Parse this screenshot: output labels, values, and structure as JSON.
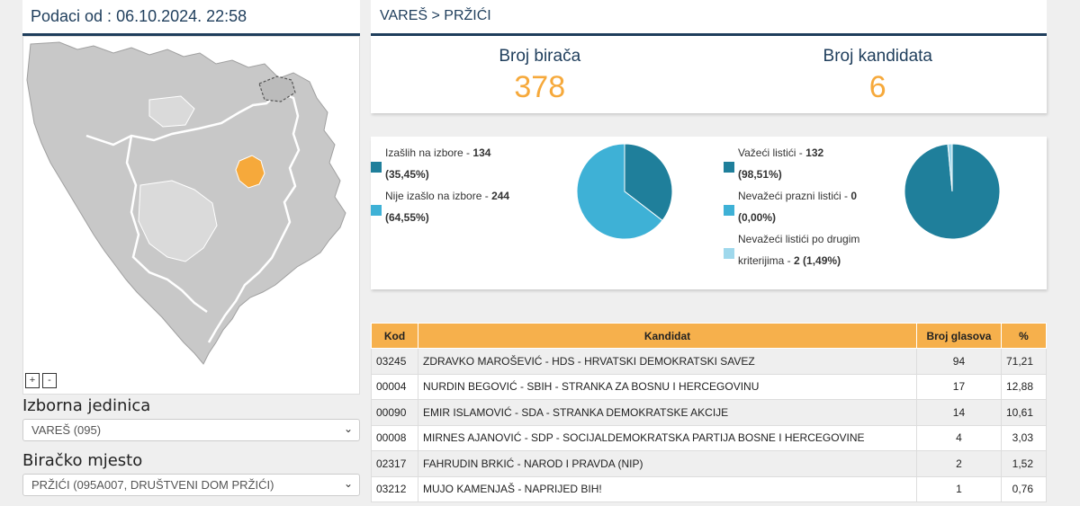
{
  "data_timestamp": "Podaci od : 06.10.2024. 22:58",
  "breadcrumb": "VAREŠ > PRŽIĆI",
  "zoom": {
    "in": "+",
    "out": "-"
  },
  "election_unit": {
    "label": "Izborna jedinica",
    "value": "VAREŠ (095)"
  },
  "polling_station": {
    "label": "Biračko mjesto",
    "value": "PRŽIĆI (095A007, DRUŠTVENI DOM PRŽIĆI)"
  },
  "stats": {
    "voters_label": "Broj birača",
    "voters_value": "378",
    "candidates_label": "Broj kandidata",
    "candidates_value": "6"
  },
  "turnout": {
    "items": [
      {
        "label": "Izašlih na izbore",
        "count": "134",
        "percent": "(35,45%)",
        "color": "#1f7f9b",
        "share": 35.45
      },
      {
        "label": "Nije izašlo na izbore",
        "count": "244",
        "percent": "(64,55%)",
        "color": "#3eb1d6",
        "share": 64.55
      }
    ]
  },
  "ballots": {
    "items": [
      {
        "label": "Važeći listići",
        "count": "132",
        "percent": "(98,51%)",
        "color": "#1f7f9b",
        "share": 98.51
      },
      {
        "label": "Nevažeći prazni listići",
        "count": "0",
        "percent": "(0,00%)",
        "color": "#3eb1d6",
        "share": 0
      },
      {
        "label_line1": "Nevažeći listići po drugim",
        "label_line2": "kriterijima",
        "count": "2",
        "percent": "(1,49%)",
        "color": "#9fd8ec",
        "share": 1.49
      }
    ]
  },
  "table": {
    "headers": {
      "code": "Kod",
      "candidate": "Kandidat",
      "votes": "Broj glasova",
      "pct": "%"
    },
    "rows": [
      {
        "code": "03245",
        "candidate": "ZDRAVKO MAROŠEVIĆ - HDS - HRVATSKI DEMOKRATSKI SAVEZ",
        "votes": "94",
        "pct": "71,21"
      },
      {
        "code": "00004",
        "candidate": "NURDIN BEGOVIĆ - SBIH - STRANKA ZA BOSNU I HERCEGOVINU",
        "votes": "17",
        "pct": "12,88"
      },
      {
        "code": "00090",
        "candidate": "EMIR ISLAMOVIĆ - SDA - STRANKA DEMOKRATSKE AKCIJE",
        "votes": "14",
        "pct": "10,61"
      },
      {
        "code": "00008",
        "candidate": "MIRNES AJANOVIĆ - SDP - SOCIJALDEMOKRATSKA PARTIJA BOSNE I HERCEGOVINE",
        "votes": "4",
        "pct": "3,03"
      },
      {
        "code": "02317",
        "candidate": "FAHRUDIN BRKIĆ - NAROD I PRAVDA (NIP)",
        "votes": "2",
        "pct": "1,52"
      },
      {
        "code": "03212",
        "candidate": "MUJO KAMENJAŠ - NAPRIJED BIH!",
        "votes": "1",
        "pct": "0,76"
      }
    ]
  },
  "colors": {
    "accent": "#1f3e5c",
    "orange": "#f6a93b",
    "table_header": "#f6b04c",
    "map_selected": "#f6a93b",
    "map_default": "#c8c8c8"
  }
}
